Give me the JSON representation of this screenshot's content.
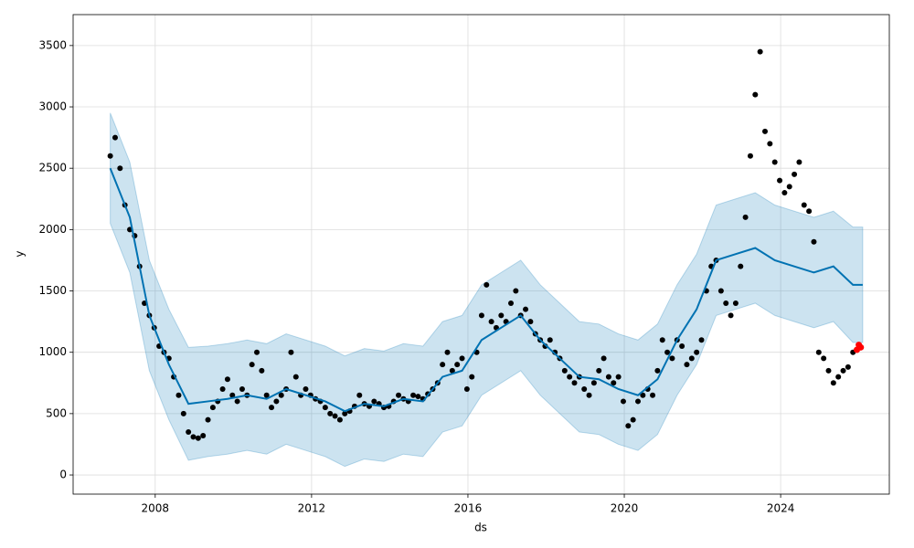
{
  "chart_data": {
    "type": "forecast",
    "xlabel": "ds",
    "ylabel": "y",
    "xlim": [
      2005.9,
      2026.78
    ],
    "ylim": [
      -156,
      3752
    ],
    "xticks": [
      2008,
      2012,
      2016,
      2020,
      2024
    ],
    "yticks": [
      0,
      500,
      1000,
      1500,
      2000,
      2500,
      3000,
      3500
    ],
    "grid": true,
    "observed": {
      "color": "#000000",
      "x": [
        2006.85,
        2006.975,
        2007.1,
        2007.225,
        2007.35,
        2007.475,
        2007.6,
        2007.725,
        2007.85,
        2007.975,
        2008.1,
        2008.225,
        2008.35,
        2008.475,
        2008.6,
        2008.725,
        2008.85,
        2008.975,
        2009.1,
        2009.225,
        2009.35,
        2009.475,
        2009.6,
        2009.725,
        2009.85,
        2009.975,
        2010.1,
        2010.225,
        2010.35,
        2010.475,
        2010.6,
        2010.725,
        2010.85,
        2010.975,
        2011.1,
        2011.225,
        2011.35,
        2011.475,
        2011.6,
        2011.725,
        2011.85,
        2011.975,
        2012.1,
        2012.225,
        2012.35,
        2012.475,
        2012.6,
        2012.725,
        2012.85,
        2012.975,
        2013.1,
        2013.225,
        2013.35,
        2013.475,
        2013.6,
        2013.725,
        2013.85,
        2013.975,
        2014.1,
        2014.225,
        2014.35,
        2014.475,
        2014.6,
        2014.725,
        2014.85,
        2014.975,
        2015.1,
        2015.225,
        2015.35,
        2015.475,
        2015.6,
        2015.725,
        2015.85,
        2015.975,
        2016.1,
        2016.225,
        2016.35,
        2016.475,
        2016.6,
        2016.725,
        2016.85,
        2016.975,
        2017.1,
        2017.225,
        2017.35,
        2017.475,
        2017.6,
        2017.725,
        2017.85,
        2017.975,
        2018.1,
        2018.225,
        2018.35,
        2018.475,
        2018.6,
        2018.725,
        2018.85,
        2018.975,
        2019.1,
        2019.225,
        2019.35,
        2019.475,
        2019.6,
        2019.725,
        2019.85,
        2019.975,
        2020.1,
        2020.225,
        2020.35,
        2020.475,
        2020.6,
        2020.725,
        2020.85,
        2020.975,
        2021.1,
        2021.225,
        2021.35,
        2021.475,
        2021.6,
        2021.725,
        2021.85,
        2021.975,
        2022.1,
        2022.225,
        2022.35,
        2022.475,
        2022.6,
        2022.725,
        2022.85,
        2022.975,
        2023.1,
        2023.225,
        2023.35,
        2023.475,
        2023.6,
        2023.725,
        2023.85,
        2023.975,
        2024.1,
        2024.225,
        2024.35,
        2024.475,
        2024.6,
        2024.725,
        2024.85,
        2024.975,
        2025.1,
        2025.225,
        2025.35,
        2025.475,
        2025.6,
        2025.725,
        2025.85
      ],
      "values": [
        2600,
        2750,
        2500,
        2200,
        2000,
        1950,
        1700,
        1400,
        1300,
        1200,
        1050,
        1000,
        950,
        800,
        650,
        500,
        350,
        310,
        300,
        320,
        450,
        550,
        600,
        700,
        780,
        650,
        600,
        700,
        650,
        900,
        1000,
        850,
        650,
        550,
        600,
        650,
        700,
        1000,
        800,
        650,
        700,
        650,
        620,
        600,
        550,
        500,
        480,
        450,
        500,
        520,
        560,
        650,
        580,
        560,
        600,
        580,
        550,
        560,
        600,
        650,
        620,
        600,
        650,
        640,
        620,
        660,
        700,
        750,
        900,
        1000,
        850,
        900,
        950,
        700,
        800,
        1000,
        1300,
        1550,
        1250,
        1200,
        1300,
        1250,
        1400,
        1500,
        1300,
        1350,
        1250,
        1150,
        1100,
        1050,
        1100,
        1000,
        950,
        850,
        800,
        750,
        800,
        700,
        650,
        750,
        850,
        950,
        800,
        750,
        800,
        600,
        400,
        450,
        600,
        650,
        700,
        650,
        850,
        1100,
        1000,
        950,
        1100,
        1050,
        900,
        950,
        1000,
        1100,
        1500,
        1700,
        1750,
        1500,
        1400,
        1300,
        1400,
        1700,
        2100,
        2600,
        3100,
        3450,
        2800,
        2700,
        2550,
        2400,
        2300,
        2350,
        2450,
        2550,
        2200,
        2150,
        1900,
        1000,
        950,
        850,
        750,
        800,
        850,
        880,
        1000
      ]
    },
    "future": {
      "color": "#ff0000",
      "x": [
        2025.95,
        2026.0,
        2026.05
      ],
      "values": [
        1020,
        1060,
        1040
      ]
    },
    "forecast": {
      "color": "#0072b2",
      "x": [
        2006.85,
        2007.35,
        2007.85,
        2008.35,
        2008.85,
        2009.35,
        2009.85,
        2010.35,
        2010.85,
        2011.35,
        2011.85,
        2012.35,
        2012.85,
        2013.35,
        2013.85,
        2014.35,
        2014.85,
        2015.35,
        2015.85,
        2016.35,
        2016.85,
        2017.35,
        2017.85,
        2018.35,
        2018.85,
        2019.35,
        2019.85,
        2020.35,
        2020.85,
        2021.35,
        2021.85,
        2022.35,
        2022.85,
        2023.35,
        2023.85,
        2024.35,
        2024.85,
        2025.35,
        2025.85,
        2026.1
      ],
      "yhat": [
        2500,
        2100,
        1300,
        900,
        580,
        600,
        620,
        650,
        620,
        700,
        650,
        600,
        520,
        580,
        560,
        620,
        600,
        800,
        850,
        1100,
        1200,
        1300,
        1100,
        950,
        800,
        780,
        700,
        650,
        780,
        1100,
        1350,
        1750,
        1800,
        1850,
        1750,
        1700,
        1650,
        1700,
        1550,
        1550
      ],
      "yhat_lower": [
        2050,
        1650,
        850,
        450,
        120,
        150,
        170,
        200,
        170,
        250,
        200,
        150,
        70,
        130,
        110,
        170,
        150,
        350,
        400,
        650,
        750,
        850,
        650,
        500,
        350,
        330,
        250,
        200,
        330,
        650,
        900,
        1300,
        1350,
        1400,
        1300,
        1250,
        1200,
        1250,
        1080,
        1080
      ],
      "yhat_upper": [
        2950,
        2550,
        1750,
        1350,
        1040,
        1050,
        1070,
        1100,
        1070,
        1150,
        1100,
        1050,
        970,
        1030,
        1010,
        1070,
        1050,
        1250,
        1300,
        1550,
        1650,
        1750,
        1550,
        1400,
        1250,
        1230,
        1150,
        1100,
        1230,
        1550,
        1800,
        2200,
        2250,
        2300,
        2200,
        2150,
        2100,
        2150,
        2020,
        2020
      ]
    }
  }
}
